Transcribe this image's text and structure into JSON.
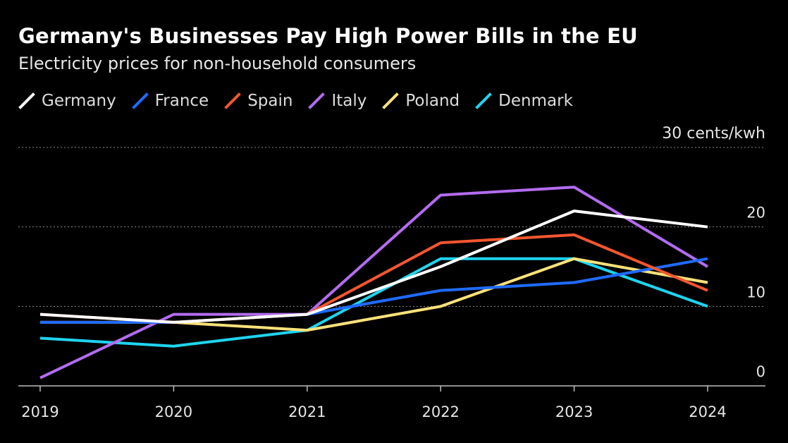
{
  "title": "Germany's Businesses Pay High Power Bills in the EU",
  "subtitle": "Electricity prices for non-household consumers",
  "chart_data": {
    "type": "line",
    "title": "Germany's Businesses Pay High Power Bills in the EU",
    "subtitle": "Electricity prices for non-household consumers",
    "x": [
      "2019",
      "2020",
      "2021",
      "2022",
      "2023",
      "2024"
    ],
    "y_unit_label": "30 cents/kwh",
    "y_ticks": [
      0,
      10,
      20,
      30
    ],
    "y_tick_labels": [
      "0",
      "10",
      "20",
      "30 cents/kwh"
    ],
    "ylim": [
      0,
      30
    ],
    "grid": true,
    "legend_position": "top-left",
    "series": [
      {
        "name": "Germany",
        "color": "#ffffff",
        "values": [
          9,
          8,
          9,
          15,
          22,
          20
        ]
      },
      {
        "name": "France",
        "color": "#1f6bff",
        "values": [
          8,
          8,
          9,
          12,
          13,
          16
        ]
      },
      {
        "name": "Spain",
        "color": "#f4562f",
        "values": [
          9,
          8,
          9,
          18,
          19,
          12
        ]
      },
      {
        "name": "Italy",
        "color": "#b36cf0",
        "values": [
          1,
          9,
          9,
          24,
          25,
          15
        ]
      },
      {
        "name": "Poland",
        "color": "#fce27a",
        "values": [
          8,
          8,
          7,
          10,
          16,
          13
        ]
      },
      {
        "name": "Denmark",
        "color": "#1fd4f0",
        "values": [
          6,
          5,
          7,
          16,
          16,
          10
        ]
      }
    ]
  }
}
